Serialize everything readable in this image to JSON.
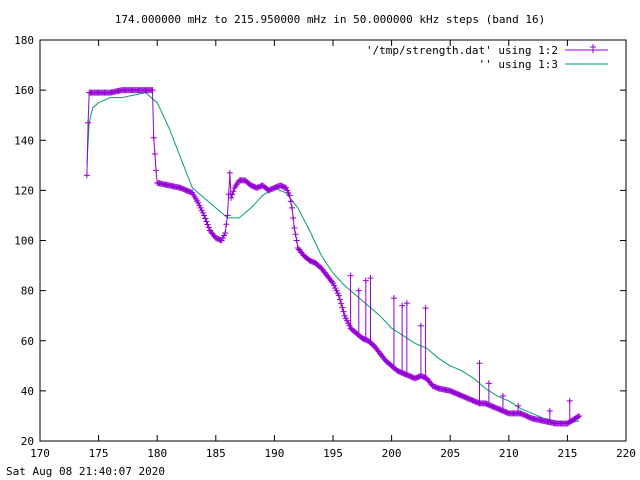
{
  "chart_data": {
    "type": "line",
    "title": "174.000000 mHz to 215.950000 mHz in 50.000000 kHz steps (band 16)",
    "xlim": [
      170,
      220
    ],
    "ylim": [
      20,
      180
    ],
    "xticks": [
      170,
      175,
      180,
      185,
      190,
      195,
      200,
      205,
      210,
      215,
      220
    ],
    "yticks": [
      20,
      40,
      60,
      80,
      100,
      120,
      140,
      160,
      180
    ],
    "grid": false,
    "legend_position": "top-right",
    "colors": {
      "series1": "#9400d3",
      "series2": "#009e73"
    },
    "series": [
      {
        "name": "'/tmp/strength.dat' using 1:2",
        "marker": "plus",
        "x": [
          174.0,
          174.1,
          174.2,
          174.5,
          175,
          176,
          177,
          178,
          179,
          179.5,
          179.6,
          179.7,
          179.9,
          180,
          181,
          182,
          183,
          183.5,
          184,
          184.5,
          185,
          185.5,
          185.8,
          186,
          186.2,
          186.3,
          186.6,
          187,
          187.5,
          188,
          188.5,
          189,
          189.5,
          190,
          190.5,
          191,
          191.3,
          191.5,
          191.7,
          191.9,
          192,
          192.5,
          193,
          193.5,
          194,
          194.5,
          195,
          195.5,
          196,
          196.5,
          197,
          197.5,
          198,
          198.5,
          199,
          199.5,
          200,
          200.5,
          201,
          201.5,
          202,
          202.5,
          203,
          203.5,
          204,
          205,
          206,
          207,
          207.5,
          208,
          209,
          210,
          211,
          212,
          213,
          214,
          215,
          216
        ],
        "y": [
          126,
          147,
          159,
          159,
          159,
          159,
          160,
          160,
          160,
          160,
          160,
          141,
          128,
          123,
          122,
          121,
          119,
          115,
          110,
          104,
          101,
          100,
          103,
          110,
          127,
          117,
          121,
          124,
          124,
          122,
          121,
          122,
          120,
          121,
          122,
          121,
          118,
          113,
          105,
          100,
          97,
          94,
          92,
          91,
          89,
          86,
          83,
          78,
          70,
          65,
          63,
          61,
          60,
          58,
          55,
          52,
          50,
          48,
          47,
          46,
          45,
          46,
          45,
          42,
          41,
          40,
          38,
          36,
          35,
          35,
          33,
          31,
          31,
          29,
          28,
          27,
          27,
          30
        ],
        "spikes": [
          {
            "x": 196.5,
            "y": 86
          },
          {
            "x": 197.2,
            "y": 80
          },
          {
            "x": 197.8,
            "y": 84
          },
          {
            "x": 198.2,
            "y": 85
          },
          {
            "x": 200.2,
            "y": 77
          },
          {
            "x": 200.9,
            "y": 74
          },
          {
            "x": 201.3,
            "y": 75
          },
          {
            "x": 202.5,
            "y": 66
          },
          {
            "x": 202.9,
            "y": 73
          },
          {
            "x": 207.5,
            "y": 51
          },
          {
            "x": 208.3,
            "y": 43
          },
          {
            "x": 209.5,
            "y": 38
          },
          {
            "x": 210.8,
            "y": 34
          },
          {
            "x": 213.5,
            "y": 32
          },
          {
            "x": 215.2,
            "y": 36
          }
        ]
      },
      {
        "name": "'' using 1:3",
        "x": [
          174.0,
          174.2,
          174.5,
          175,
          176,
          177,
          178,
          179,
          180,
          181,
          182,
          183,
          184,
          185,
          186,
          187,
          188,
          189,
          190,
          191,
          192,
          193,
          194,
          195,
          196,
          197,
          198,
          199,
          200,
          201,
          202,
          203,
          204,
          205,
          206,
          207,
          208,
          209,
          210,
          211,
          212,
          213,
          214,
          215,
          216
        ],
        "y": [
          130,
          147,
          153,
          155,
          157,
          157,
          158,
          159,
          155,
          145,
          133,
          121,
          117,
          113,
          109,
          109,
          113,
          118,
          121,
          119,
          113,
          104,
          94,
          87,
          82,
          78,
          74,
          70,
          65,
          62,
          59,
          57,
          53,
          50,
          48,
          45,
          41,
          38,
          36,
          33,
          31,
          29,
          28,
          27,
          28
        ]
      }
    ],
    "xlabel": "",
    "ylabel": ""
  },
  "footer": {
    "timestamp": "Sat Aug 08 21:40:07 2020"
  }
}
